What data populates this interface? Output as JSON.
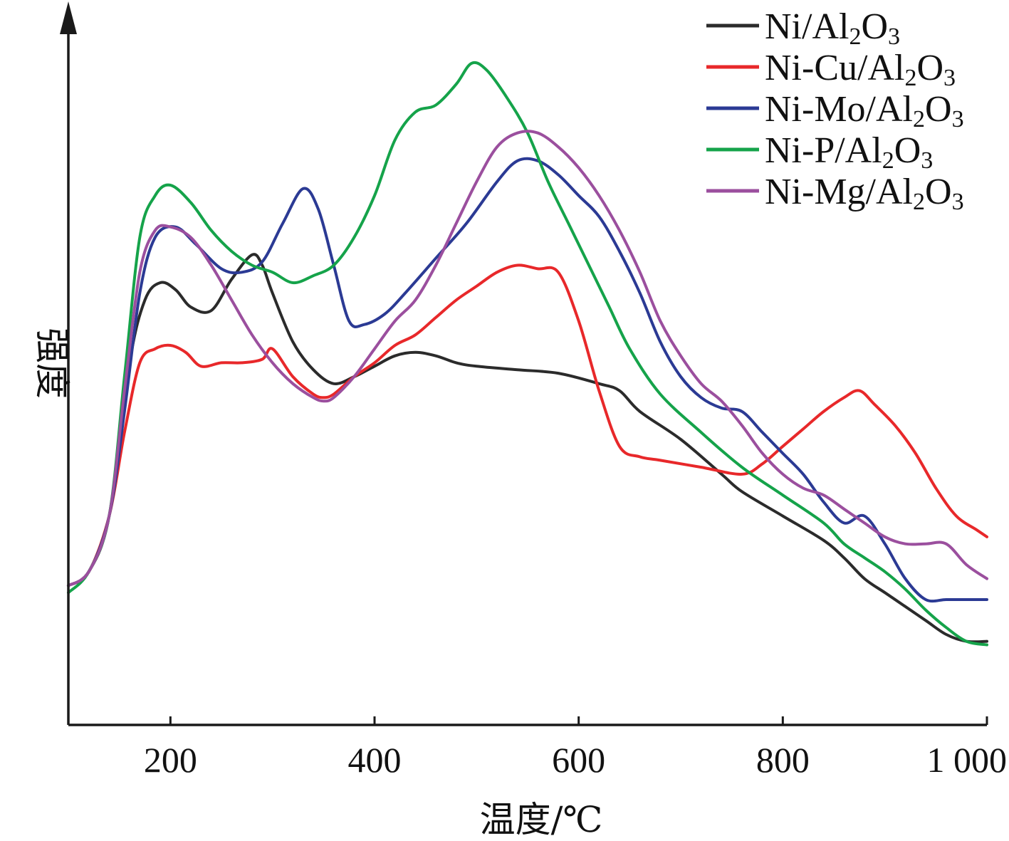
{
  "chart_data": {
    "type": "line",
    "xlabel": "温度/℃",
    "ylabel": "强度",
    "xlim": [
      100,
      1000
    ],
    "ylim": [
      0,
      100
    ],
    "x_ticks": [
      200,
      400,
      600,
      800,
      1000
    ],
    "x_tick_labels": [
      "200",
      "400",
      "600",
      "800",
      "1 000"
    ],
    "y_ticks_shown": false,
    "grid": false,
    "legend_position": "top-right",
    "series": [
      {
        "name": "Ni/Al2O3",
        "label_parts": [
          "Ni/Al",
          "2",
          "O",
          "3"
        ],
        "color": "#2b2b2b",
        "points": [
          [
            100,
            20
          ],
          [
            120,
            22
          ],
          [
            140,
            30
          ],
          [
            160,
            52
          ],
          [
            175,
            61
          ],
          [
            190,
            63.5
          ],
          [
            205,
            62.5
          ],
          [
            220,
            60
          ],
          [
            240,
            59.5
          ],
          [
            260,
            64
          ],
          [
            280,
            67.5
          ],
          [
            290,
            66
          ],
          [
            300,
            62
          ],
          [
            320,
            55
          ],
          [
            340,
            51
          ],
          [
            360,
            49
          ],
          [
            380,
            50
          ],
          [
            400,
            51.5
          ],
          [
            420,
            53
          ],
          [
            440,
            53.5
          ],
          [
            460,
            53
          ],
          [
            480,
            52
          ],
          [
            500,
            51.5
          ],
          [
            540,
            51
          ],
          [
            580,
            50.5
          ],
          [
            620,
            49
          ],
          [
            640,
            48
          ],
          [
            660,
            45
          ],
          [
            700,
            41
          ],
          [
            740,
            36
          ],
          [
            760,
            33.5
          ],
          [
            800,
            30
          ],
          [
            840,
            26.5
          ],
          [
            860,
            24
          ],
          [
            880,
            21
          ],
          [
            900,
            19
          ],
          [
            920,
            17
          ],
          [
            940,
            15
          ],
          [
            960,
            13
          ],
          [
            980,
            12
          ],
          [
            1000,
            12
          ]
        ]
      },
      {
        "name": "Ni-Cu/Al2O3",
        "label_parts": [
          "Ni-Cu/Al",
          "2",
          "O",
          "3"
        ],
        "color": "#e8282a",
        "points": [
          [
            100,
            20
          ],
          [
            120,
            22
          ],
          [
            140,
            30
          ],
          [
            155,
            42
          ],
          [
            170,
            52
          ],
          [
            185,
            54
          ],
          [
            200,
            54.5
          ],
          [
            215,
            53.5
          ],
          [
            230,
            51.5
          ],
          [
            250,
            52
          ],
          [
            270,
            52
          ],
          [
            290,
            52.5
          ],
          [
            300,
            54
          ],
          [
            320,
            50
          ],
          [
            340,
            47.5
          ],
          [
            350,
            47
          ],
          [
            360,
            47.5
          ],
          [
            380,
            50
          ],
          [
            400,
            52
          ],
          [
            420,
            54.5
          ],
          [
            440,
            56
          ],
          [
            460,
            58.5
          ],
          [
            480,
            61
          ],
          [
            500,
            63
          ],
          [
            520,
            65
          ],
          [
            540,
            66
          ],
          [
            560,
            65.5
          ],
          [
            580,
            65
          ],
          [
            600,
            58
          ],
          [
            620,
            48
          ],
          [
            640,
            40
          ],
          [
            660,
            38.5
          ],
          [
            680,
            38
          ],
          [
            720,
            37
          ],
          [
            760,
            36
          ],
          [
            780,
            37.5
          ],
          [
            800,
            40
          ],
          [
            820,
            42.5
          ],
          [
            840,
            45
          ],
          [
            860,
            47
          ],
          [
            875,
            48
          ],
          [
            890,
            46
          ],
          [
            910,
            43
          ],
          [
            930,
            39
          ],
          [
            950,
            34
          ],
          [
            970,
            30
          ],
          [
            990,
            28
          ],
          [
            1000,
            27
          ]
        ]
      },
      {
        "name": "Ni-Mo/Al2O3",
        "label_parts": [
          "Ni-Mo/Al",
          "2",
          "O",
          "3"
        ],
        "color": "#2b3a94",
        "points": [
          [
            100,
            20
          ],
          [
            120,
            22
          ],
          [
            140,
            30
          ],
          [
            155,
            45
          ],
          [
            170,
            62
          ],
          [
            185,
            70
          ],
          [
            205,
            71.5
          ],
          [
            225,
            69
          ],
          [
            250,
            65.5
          ],
          [
            270,
            65
          ],
          [
            290,
            66.5
          ],
          [
            310,
            72
          ],
          [
            330,
            77
          ],
          [
            345,
            74
          ],
          [
            360,
            66
          ],
          [
            375,
            58
          ],
          [
            390,
            57.5
          ],
          [
            410,
            59
          ],
          [
            430,
            62
          ],
          [
            460,
            67
          ],
          [
            490,
            72
          ],
          [
            520,
            78
          ],
          [
            540,
            81
          ],
          [
            560,
            81
          ],
          [
            580,
            79
          ],
          [
            600,
            76
          ],
          [
            620,
            73
          ],
          [
            640,
            68
          ],
          [
            660,
            62
          ],
          [
            680,
            55
          ],
          [
            700,
            50
          ],
          [
            720,
            47
          ],
          [
            740,
            45.5
          ],
          [
            760,
            45
          ],
          [
            780,
            42
          ],
          [
            800,
            39
          ],
          [
            820,
            36
          ],
          [
            840,
            32
          ],
          [
            860,
            29
          ],
          [
            880,
            30
          ],
          [
            900,
            26
          ],
          [
            920,
            21
          ],
          [
            940,
            18
          ],
          [
            960,
            18
          ],
          [
            980,
            18
          ],
          [
            1000,
            18
          ]
        ]
      },
      {
        "name": "Ni-P/Al2O3",
        "label_parts": [
          "Ni-P/Al",
          "2",
          "O",
          "3"
        ],
        "color": "#15a34a",
        "points": [
          [
            100,
            19
          ],
          [
            120,
            22
          ],
          [
            140,
            30
          ],
          [
            155,
            50
          ],
          [
            170,
            70
          ],
          [
            185,
            76
          ],
          [
            200,
            77.5
          ],
          [
            220,
            75
          ],
          [
            240,
            71
          ],
          [
            260,
            68
          ],
          [
            280,
            66
          ],
          [
            300,
            65
          ],
          [
            320,
            63.5
          ],
          [
            340,
            64.5
          ],
          [
            360,
            66
          ],
          [
            380,
            70
          ],
          [
            400,
            76
          ],
          [
            420,
            84
          ],
          [
            440,
            88
          ],
          [
            460,
            89
          ],
          [
            480,
            92
          ],
          [
            495,
            95
          ],
          [
            510,
            94
          ],
          [
            530,
            90
          ],
          [
            550,
            85
          ],
          [
            570,
            78
          ],
          [
            590,
            72
          ],
          [
            610,
            66
          ],
          [
            630,
            60
          ],
          [
            650,
            54
          ],
          [
            680,
            47.5
          ],
          [
            720,
            42
          ],
          [
            760,
            37
          ],
          [
            800,
            33
          ],
          [
            840,
            29
          ],
          [
            860,
            26
          ],
          [
            880,
            24
          ],
          [
            900,
            22
          ],
          [
            920,
            19.5
          ],
          [
            940,
            16.5
          ],
          [
            960,
            14
          ],
          [
            980,
            12
          ],
          [
            1000,
            11.5
          ]
        ]
      },
      {
        "name": "Ni-Mg/Al2O3",
        "label_parts": [
          "Ni-Mg/Al",
          "2",
          "O",
          "3"
        ],
        "color": "#9b4f9e",
        "points": [
          [
            100,
            20
          ],
          [
            120,
            22
          ],
          [
            140,
            30
          ],
          [
            155,
            48
          ],
          [
            170,
            65
          ],
          [
            185,
            71
          ],
          [
            200,
            71.5
          ],
          [
            220,
            70
          ],
          [
            240,
            66
          ],
          [
            260,
            61
          ],
          [
            280,
            56
          ],
          [
            300,
            52
          ],
          [
            320,
            49
          ],
          [
            340,
            47
          ],
          [
            350,
            46.5
          ],
          [
            360,
            47
          ],
          [
            380,
            50
          ],
          [
            400,
            54
          ],
          [
            420,
            58
          ],
          [
            440,
            61
          ],
          [
            460,
            66
          ],
          [
            480,
            72
          ],
          [
            500,
            78
          ],
          [
            520,
            83
          ],
          [
            540,
            85
          ],
          [
            560,
            85
          ],
          [
            580,
            83
          ],
          [
            600,
            80
          ],
          [
            620,
            76
          ],
          [
            640,
            71
          ],
          [
            660,
            65
          ],
          [
            680,
            58
          ],
          [
            700,
            53
          ],
          [
            720,
            49
          ],
          [
            740,
            46.5
          ],
          [
            760,
            43
          ],
          [
            780,
            39
          ],
          [
            800,
            36
          ],
          [
            820,
            34
          ],
          [
            840,
            33
          ],
          [
            860,
            31
          ],
          [
            880,
            29
          ],
          [
            900,
            27
          ],
          [
            920,
            26
          ],
          [
            940,
            26
          ],
          [
            960,
            26
          ],
          [
            980,
            23
          ],
          [
            1000,
            21
          ]
        ]
      }
    ]
  }
}
